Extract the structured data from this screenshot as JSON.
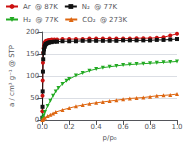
{
  "chart_data": {
    "type": "line",
    "title": "",
    "xlabel": "p/p₀",
    "ylabel": "a / cm³ g⁻¹ @ STP",
    "xlim": [
      0,
      1.0
    ],
    "ylim": [
      0,
      200
    ],
    "xticks": [
      {
        "value": 0.0,
        "label": "0.0"
      },
      0.2,
      0.4,
      0.6,
      0.8,
      {
        "value": 1.0,
        "label": "1.0"
      }
    ],
    "yticks": [
      0,
      50,
      100,
      150,
      200
    ],
    "legend": "upper left",
    "series": [
      {
        "name": "Ar  @ 87K",
        "color": "#cc1111",
        "marker": "circle",
        "x": [
          0.001,
          0.002,
          0.003,
          0.005,
          0.007,
          0.01,
          0.013,
          0.017,
          0.02,
          0.025,
          0.03,
          0.04,
          0.05,
          0.06,
          0.07,
          0.09,
          0.11,
          0.15,
          0.2,
          0.25,
          0.3,
          0.35,
          0.4,
          0.45,
          0.5,
          0.55,
          0.6,
          0.65,
          0.7,
          0.75,
          0.8,
          0.85,
          0.9,
          0.95,
          1.0
        ],
        "values": [
          20,
          55,
          90,
          130,
          153,
          163,
          170,
          175,
          177,
          179,
          180,
          181,
          182,
          182,
          183,
          183,
          183,
          184,
          184,
          184,
          184,
          185,
          185,
          185,
          185,
          185,
          185,
          185,
          186,
          186,
          186,
          187,
          188,
          192,
          196
        ]
      },
      {
        "name": "N₂  @ 77K",
        "color": "#111111",
        "marker": "square",
        "x": [
          0.001,
          0.002,
          0.003,
          0.005,
          0.007,
          0.01,
          0.013,
          0.017,
          0.02,
          0.025,
          0.03,
          0.04,
          0.05,
          0.06,
          0.07,
          0.09,
          0.11,
          0.15,
          0.2,
          0.25,
          0.3,
          0.35,
          0.4,
          0.45,
          0.5,
          0.55,
          0.6,
          0.65,
          0.7,
          0.75,
          0.8,
          0.85,
          0.9,
          0.95,
          1.0
        ],
        "values": [
          5,
          30,
          65,
          110,
          138,
          152,
          160,
          166,
          169,
          172,
          173,
          175,
          176,
          177,
          177,
          178,
          178,
          179,
          179,
          179,
          180,
          180,
          180,
          180,
          180,
          180,
          181,
          181,
          181,
          181,
          181,
          182,
          182,
          183,
          184
        ]
      },
      {
        "name": "H₂  @ 77K",
        "color": "#22aa22",
        "marker": "triangle_down",
        "x": [
          0.001,
          0.005,
          0.01,
          0.02,
          0.04,
          0.06,
          0.08,
          0.1,
          0.12,
          0.15,
          0.18,
          0.2,
          0.25,
          0.3,
          0.35,
          0.4,
          0.45,
          0.5,
          0.55,
          0.6,
          0.65,
          0.7,
          0.75,
          0.8,
          0.85,
          0.9,
          0.95,
          1.0
        ],
        "values": [
          1,
          5,
          10,
          18,
          32,
          44,
          55,
          65,
          73,
          82,
          89,
          93,
          101,
          107,
          112,
          116,
          119,
          121,
          123,
          125,
          126,
          127,
          128,
          129,
          130,
          131,
          132,
          133
        ]
      },
      {
        "name": "CO₂  @ 273K",
        "color": "#dd6611",
        "marker": "triangle_up",
        "x": [
          0.001,
          0.005,
          0.01,
          0.02,
          0.04,
          0.06,
          0.08,
          0.1,
          0.15,
          0.2,
          0.25,
          0.3,
          0.35,
          0.4,
          0.45,
          0.5,
          0.55,
          0.6,
          0.65,
          0.7,
          0.75,
          0.8,
          0.85,
          0.9,
          0.95,
          1.0
        ],
        "values": [
          0,
          1,
          3,
          5,
          9,
          12,
          15,
          18,
          23,
          27,
          31,
          34,
          37,
          39,
          41,
          43,
          45,
          47,
          49,
          50,
          51,
          53,
          55,
          56,
          57,
          59
        ]
      }
    ]
  }
}
